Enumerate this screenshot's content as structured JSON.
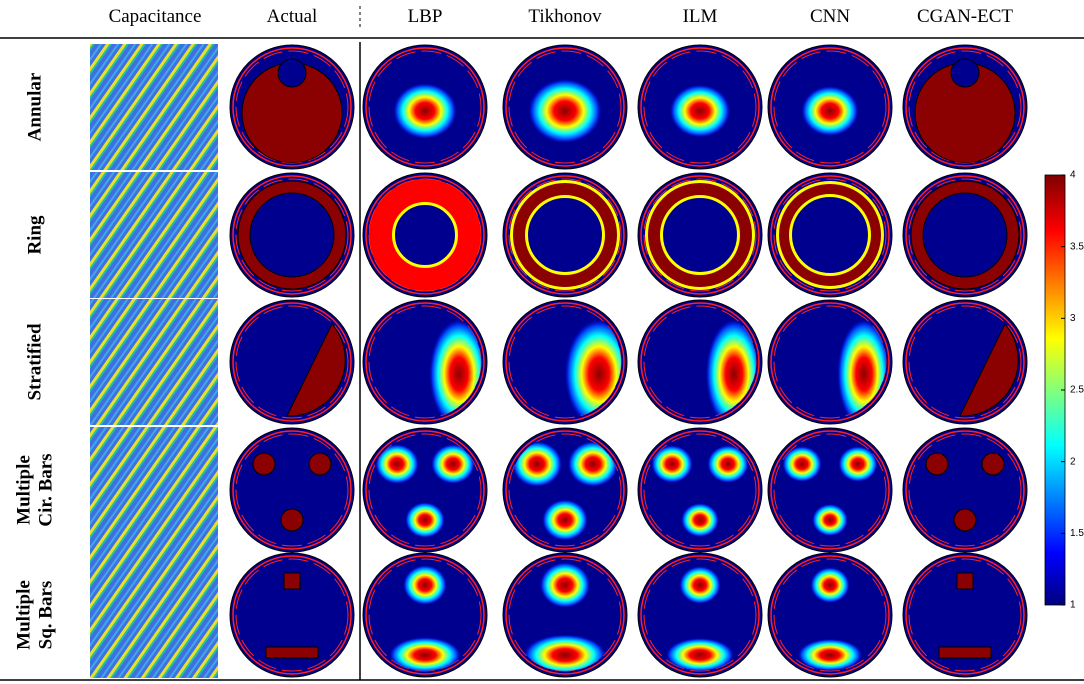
{
  "header": {
    "columns": [
      "Capacitance",
      "Actual",
      "LBP",
      "Tikhonov",
      "ILM",
      "CNN",
      "CGAN-ECT"
    ]
  },
  "rows": [
    [
      "Annular"
    ],
    [
      "Ring"
    ],
    [
      "Stratified"
    ],
    [
      "Multiple",
      "Cir. Bars"
    ],
    [
      "Multiple",
      "Sq. Bars"
    ]
  ],
  "colorbar": {
    "range": [
      1,
      4
    ],
    "ticks": [
      1,
      1.5,
      2,
      2.5,
      3,
      3.5,
      4
    ]
  }
}
